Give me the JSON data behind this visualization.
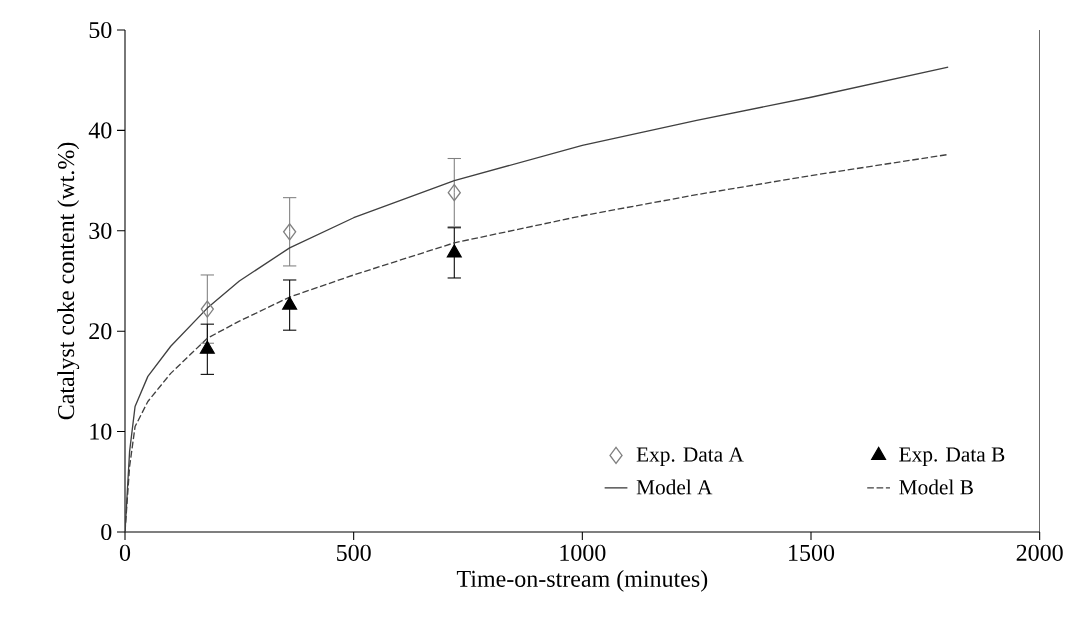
{
  "chart_data": {
    "type": "scatter",
    "xlabel": "Time-on-stream (minutes)",
    "ylabel": "Catalyst coke content (wt.%)",
    "xlim": [
      0,
      2000
    ],
    "ylim": [
      0,
      50
    ],
    "xticks": [
      0,
      500,
      1000,
      1500,
      2000
    ],
    "yticks": [
      0,
      10,
      20,
      30,
      40,
      50
    ],
    "grid": false,
    "legend": "bottom right",
    "series": [
      {
        "name": "Exp. Data A",
        "marker": "diamond",
        "color": "#808080",
        "x": [
          180,
          360,
          720
        ],
        "values": [
          22.2,
          29.9,
          33.8
        ],
        "errors": [
          3.4,
          3.4,
          3.4
        ]
      },
      {
        "name": "Exp. Data B",
        "marker": "triangle",
        "color": "#000000",
        "x": [
          180,
          360,
          720
        ],
        "values": [
          18.2,
          22.6,
          27.8
        ],
        "errors": [
          2.5,
          2.5,
          2.5
        ]
      },
      {
        "name": "Model A",
        "type": "line",
        "line_style": "solid",
        "color": "#404040",
        "x": [
          0,
          10,
          22,
          50,
          100,
          180,
          250,
          360,
          500,
          720,
          1000,
          1250,
          1500,
          1800
        ],
        "values": [
          0,
          8,
          12.5,
          15.5,
          18.5,
          22.3,
          25,
          28.3,
          31.3,
          35,
          38.5,
          41,
          43.3,
          46.3
        ]
      },
      {
        "name": "Model B",
        "type": "line",
        "line_style": "dashed",
        "color": "#404040",
        "x": [
          0,
          10,
          22,
          50,
          100,
          180,
          250,
          360,
          500,
          720,
          1000,
          1250,
          1500,
          1800
        ],
        "values": [
          0,
          6.5,
          10.5,
          13,
          15.8,
          19.3,
          21,
          23.4,
          25.6,
          28.8,
          31.5,
          33.6,
          35.5,
          37.6
        ]
      }
    ]
  }
}
